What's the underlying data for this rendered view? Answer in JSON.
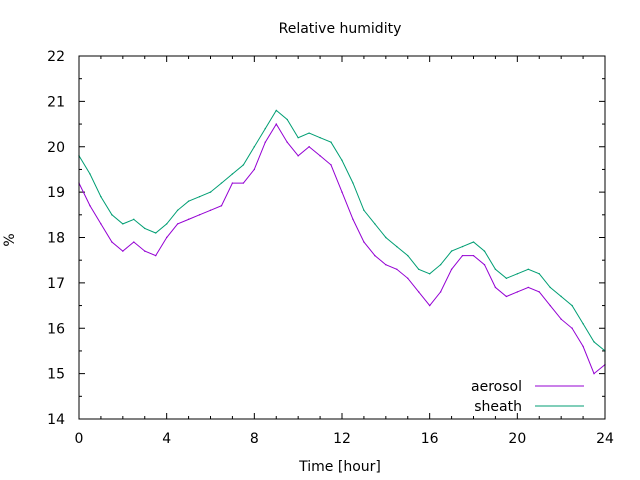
{
  "chart_data": {
    "type": "line",
    "title": "Relative humidity",
    "xlabel": "Time [hour]",
    "ylabel": "%",
    "xlim": [
      0,
      24
    ],
    "ylim": [
      14,
      22
    ],
    "xticks": [
      0,
      4,
      8,
      12,
      16,
      20,
      24
    ],
    "yticks": [
      14,
      15,
      16,
      17,
      18,
      19,
      20,
      21,
      22
    ],
    "grid": false,
    "legend_position": "bottom-right",
    "series": [
      {
        "name": "aerosol",
        "color": "#9400d3",
        "x": [
          0,
          0.5,
          1,
          1.5,
          2,
          2.5,
          3,
          3.5,
          4,
          4.5,
          5,
          5.5,
          6,
          6.5,
          7,
          7.5,
          8,
          8.5,
          9,
          9.5,
          10,
          10.5,
          11,
          11.5,
          12,
          12.5,
          13,
          13.5,
          14,
          14.5,
          15,
          15.5,
          16,
          16.5,
          17,
          17.5,
          18,
          18.5,
          19,
          19.5,
          20,
          20.5,
          21,
          21.5,
          22,
          22.5,
          23,
          23.5,
          24
        ],
        "y": [
          19.2,
          18.7,
          18.3,
          17.9,
          17.7,
          17.9,
          17.7,
          17.6,
          18.0,
          18.3,
          18.4,
          18.5,
          18.6,
          18.7,
          19.2,
          19.2,
          19.5,
          20.1,
          20.5,
          20.1,
          19.8,
          20.0,
          19.8,
          19.6,
          19.0,
          18.4,
          17.9,
          17.6,
          17.4,
          17.3,
          17.1,
          16.8,
          16.5,
          16.8,
          17.3,
          17.6,
          17.6,
          17.4,
          16.9,
          16.7,
          16.8,
          16.9,
          16.8,
          16.5,
          16.2,
          16.0,
          15.6,
          15.0,
          15.2
        ]
      },
      {
        "name": "sheath",
        "color": "#009e73",
        "x": [
          0,
          0.5,
          1,
          1.5,
          2,
          2.5,
          3,
          3.5,
          4,
          4.5,
          5,
          5.5,
          6,
          6.5,
          7,
          7.5,
          8,
          8.5,
          9,
          9.5,
          10,
          10.5,
          11,
          11.5,
          12,
          12.5,
          13,
          13.5,
          14,
          14.5,
          15,
          15.5,
          16,
          16.5,
          17,
          17.5,
          18,
          18.5,
          19,
          19.5,
          20,
          20.5,
          21,
          21.5,
          22,
          22.5,
          23,
          23.5,
          24
        ],
        "y": [
          19.8,
          19.4,
          18.9,
          18.5,
          18.3,
          18.4,
          18.2,
          18.1,
          18.3,
          18.6,
          18.8,
          18.9,
          19.0,
          19.2,
          19.4,
          19.6,
          20.0,
          20.4,
          20.8,
          20.6,
          20.2,
          20.3,
          20.2,
          20.1,
          19.7,
          19.2,
          18.6,
          18.3,
          18.0,
          17.8,
          17.6,
          17.3,
          17.2,
          17.4,
          17.7,
          17.8,
          17.9,
          17.7,
          17.3,
          17.1,
          17.2,
          17.3,
          17.2,
          16.9,
          16.7,
          16.5,
          16.1,
          15.7,
          15.5
        ]
      }
    ]
  }
}
